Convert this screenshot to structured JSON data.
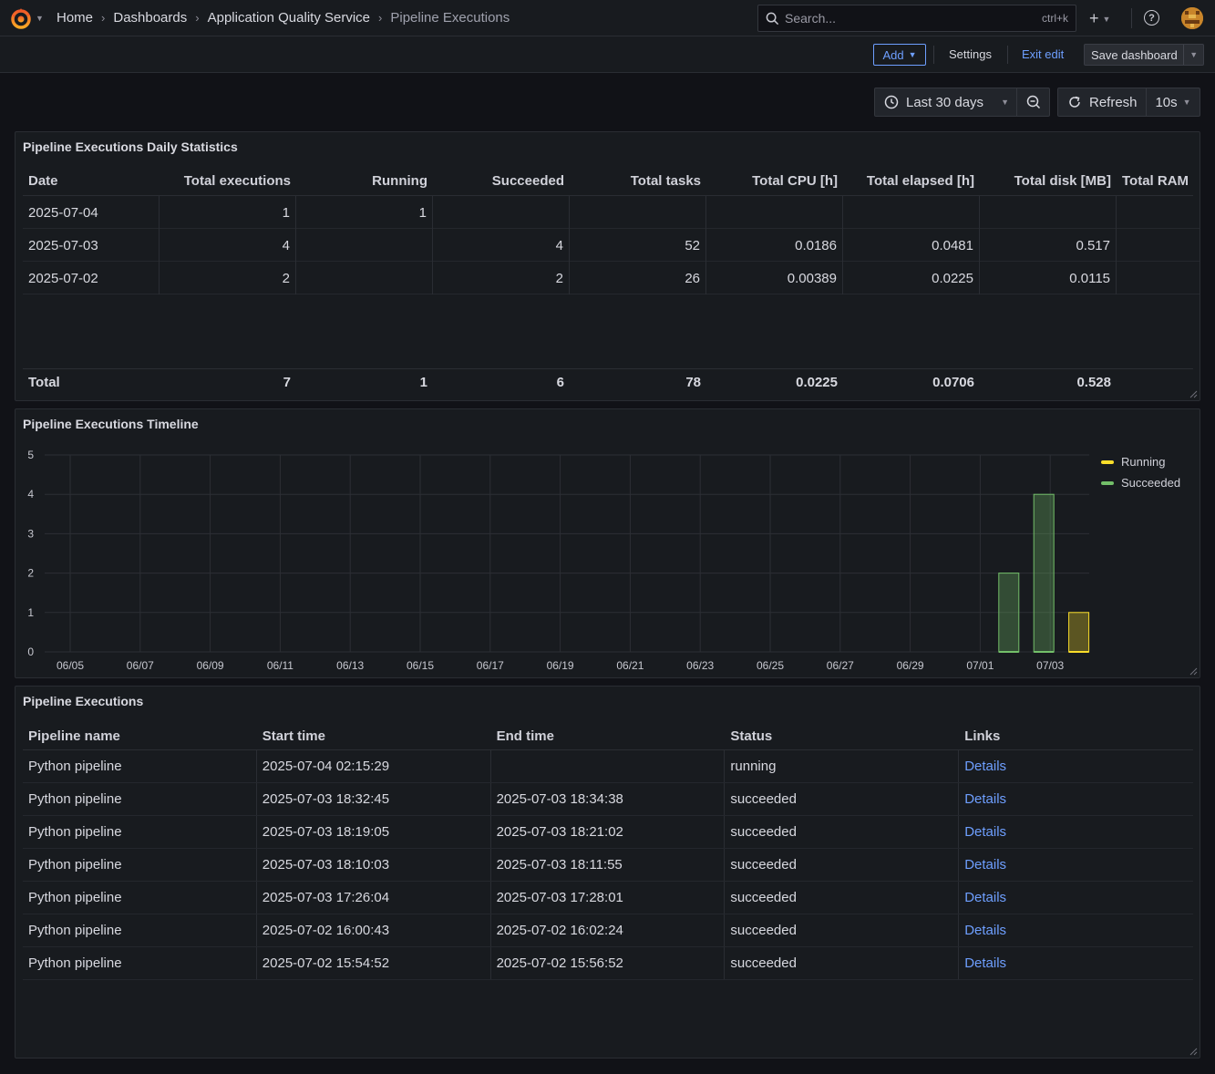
{
  "topbar": {
    "breadcrumb": [
      "Home",
      "Dashboards",
      "Application Quality Service",
      "Pipeline Executions"
    ],
    "search_placeholder": "Search...",
    "search_shortcut": "ctrl+k"
  },
  "toolbar": {
    "add_label": "Add",
    "settings_label": "Settings",
    "exit_edit_label": "Exit edit",
    "save_label": "Save dashboard"
  },
  "time": {
    "range_label": "Last 30 days",
    "refresh_label": "Refresh",
    "interval_label": "10s"
  },
  "stats_panel": {
    "title": "Pipeline Executions Daily Statistics",
    "columns": [
      "Date",
      "Total executions",
      "Running",
      "Succeeded",
      "Total tasks",
      "Total CPU [h]",
      "Total elapsed [h]",
      "Total disk [MB]",
      "Total RAM"
    ],
    "rows": [
      [
        "2025-07-04",
        "1",
        "1",
        "",
        "",
        "",
        "",
        "",
        ""
      ],
      [
        "2025-07-03",
        "4",
        "",
        "4",
        "52",
        "0.0186",
        "0.0481",
        "0.517",
        ""
      ],
      [
        "2025-07-02",
        "2",
        "",
        "2",
        "26",
        "0.00389",
        "0.0225",
        "0.0115",
        ""
      ]
    ],
    "footer": [
      "Total",
      "7",
      "1",
      "6",
      "78",
      "0.0225",
      "0.0706",
      "0.528",
      ""
    ]
  },
  "timeline_panel": {
    "title": "Pipeline Executions Timeline",
    "colors": {
      "running": "#fade2a",
      "succeeded": "#73bf69"
    }
  },
  "chart_data": {
    "type": "bar",
    "title": "Pipeline Executions Timeline",
    "x_ticks": [
      "06/05",
      "06/07",
      "06/09",
      "06/11",
      "06/13",
      "06/15",
      "06/17",
      "06/19",
      "06/21",
      "06/23",
      "06/25",
      "06/27",
      "06/29",
      "07/01",
      "07/03"
    ],
    "ylim": [
      0,
      5
    ],
    "y_ticks": [
      0,
      1,
      2,
      3,
      4,
      5
    ],
    "grid": true,
    "legend": "right",
    "series": [
      {
        "name": "Running",
        "points": [
          {
            "date": "07/04",
            "value": 1
          }
        ]
      },
      {
        "name": "Succeeded",
        "points": [
          {
            "date": "07/02",
            "value": 2
          },
          {
            "date": "07/03",
            "value": 4
          }
        ]
      }
    ]
  },
  "executions_panel": {
    "title": "Pipeline Executions",
    "columns": [
      "Pipeline name",
      "Start time",
      "End time",
      "Status",
      "Links"
    ],
    "rows": [
      [
        "Python pipeline",
        "2025-07-04 02:15:29",
        "",
        "running",
        "Details"
      ],
      [
        "Python pipeline",
        "2025-07-03 18:32:45",
        "2025-07-03 18:34:38",
        "succeeded",
        "Details"
      ],
      [
        "Python pipeline",
        "2025-07-03 18:19:05",
        "2025-07-03 18:21:02",
        "succeeded",
        "Details"
      ],
      [
        "Python pipeline",
        "2025-07-03 18:10:03",
        "2025-07-03 18:11:55",
        "succeeded",
        "Details"
      ],
      [
        "Python pipeline",
        "2025-07-03 17:26:04",
        "2025-07-03 17:28:01",
        "succeeded",
        "Details"
      ],
      [
        "Python pipeline",
        "2025-07-02 16:00:43",
        "2025-07-02 16:02:24",
        "succeeded",
        "Details"
      ],
      [
        "Python pipeline",
        "2025-07-02 15:54:52",
        "2025-07-02 15:56:52",
        "succeeded",
        "Details"
      ]
    ]
  }
}
